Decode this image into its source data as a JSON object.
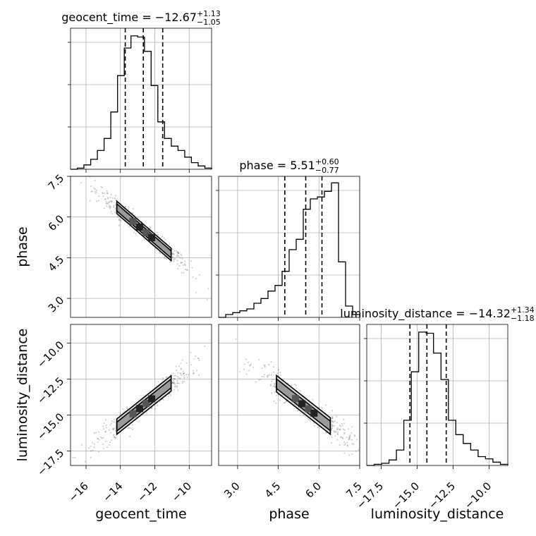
{
  "chart_data": {
    "type": "corner",
    "parameters": [
      {
        "name": "geocent_time",
        "range": [
          -16.9,
          -8.7
        ],
        "ticks": [
          -16,
          -14,
          -12,
          -10
        ],
        "tick_labels": [
          "−16",
          "−14",
          "−12",
          "−10"
        ],
        "title": {
          "prefix": "geocent_time = ",
          "value": "−12.67",
          "upper": "+1.13",
          "lower": "−1.05"
        },
        "quantiles": [
          -13.72,
          -12.67,
          -11.54
        ],
        "hist": [
          0,
          1,
          4,
          9,
          17,
          28,
          52,
          85,
          110,
          121,
          120,
          107,
          76,
          43,
          28,
          21,
          17,
          11,
          6,
          3,
          1
        ],
        "hist_ylim": [
          0,
          128
        ]
      },
      {
        "name": "phase",
        "range": [
          2.3,
          7.5
        ],
        "ticks": [
          3.0,
          4.5,
          6.0,
          7.5
        ],
        "tick_labels": [
          "3.0",
          "4.5",
          "6.0",
          "7.5"
        ],
        "title": {
          "prefix": "phase = ",
          "value": "5.51",
          "upper": "+0.60",
          "lower": "−0.77"
        },
        "quantiles": [
          4.74,
          5.51,
          6.11
        ],
        "hist": [
          0,
          3,
          5,
          7,
          9,
          15,
          20,
          28,
          34,
          49,
          72,
          83,
          115,
          126,
          128,
          134,
          143,
          59,
          12,
          3
        ],
        "hist_ylim": [
          0,
          150
        ]
      },
      {
        "name": "luminosity_distance",
        "range": [
          -18.5,
          -8.7
        ],
        "ticks": [
          -17.5,
          -15.0,
          -12.5,
          -10.0
        ],
        "tick_labels": [
          "−17.5",
          "−15.0",
          "−12.5",
          "−10.0"
        ],
        "title": {
          "prefix": "luminosity_distance = ",
          "value": "−14.32",
          "upper": "+1.34",
          "lower": "−1.18"
        },
        "quantiles": [
          -15.5,
          -14.32,
          -12.98
        ],
        "hist": [
          0,
          1,
          2,
          5,
          14,
          41,
          85,
          121,
          120,
          102,
          78,
          41,
          28,
          20,
          14,
          8,
          6,
          3,
          1
        ],
        "hist_ylim": [
          0,
          128
        ]
      }
    ],
    "grid": true,
    "pairs": [
      {
        "x": "geocent_time",
        "y": "phase",
        "trend": {
          "slope": -0.55,
          "intercept": -1.46,
          "scatter": 0.12
        }
      },
      {
        "x": "geocent_time",
        "y": "luminosity_distance",
        "trend": {
          "slope": 0.95,
          "intercept": -2.3,
          "scatter": 0.28
        }
      },
      {
        "x": "phase",
        "y": "luminosity_distance",
        "trend": {
          "slope": -1.48,
          "intercept": -6.26,
          "scatter": 0.3
        }
      }
    ]
  }
}
